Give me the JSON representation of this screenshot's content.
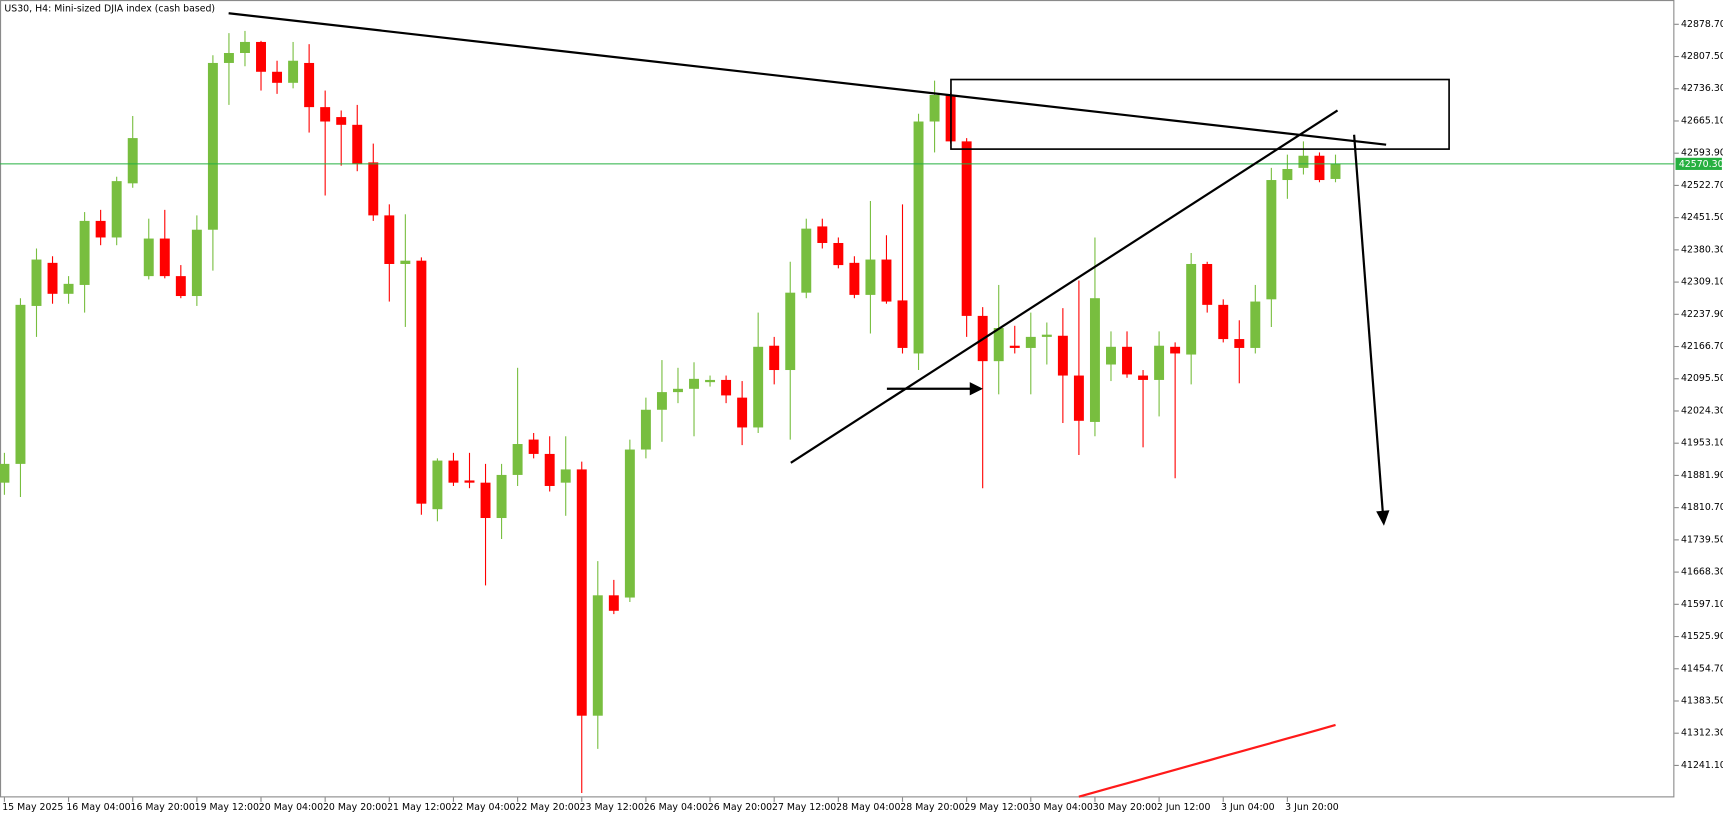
{
  "chart_data": {
    "type": "candlestick",
    "title": "US30, H4:  Mini-sized DJIA index (cash based)",
    "categories": [
      "15 May 2025",
      null,
      null,
      null,
      "16 May 04:00",
      null,
      null,
      null,
      "16 May 20:00",
      null,
      null,
      null,
      "19 May 12:00",
      null,
      null,
      null,
      "20 May 04:00",
      null,
      null,
      null,
      "20 May 20:00",
      null,
      null,
      null,
      "21 May 12:00",
      null,
      null,
      null,
      "22 May 04:00",
      null,
      null,
      null,
      "22 May 20:00",
      null,
      null,
      null,
      "23 May 12:00",
      null,
      null,
      null,
      "26 May 04:00",
      null,
      null,
      null,
      "26 May 20:00",
      null,
      null,
      null,
      "27 May 12:00",
      null,
      null,
      null,
      "28 May 04:00",
      null,
      null,
      null,
      "28 May 20:00",
      null,
      null,
      null,
      "29 May 12:00",
      null,
      null,
      null,
      "30 May 04:00",
      null,
      null,
      null,
      "30 May 20:00",
      null,
      null,
      null,
      "2 Jun 12:00",
      null,
      null,
      null,
      "3 Jun 04:00",
      null,
      null,
      null,
      "3 Jun 20:00",
      null,
      null,
      null
    ],
    "open": [
      41865.9,
      41907.4,
      42256.4,
      42351.6,
      42283.2,
      42302.8,
      42444.3,
      42407.7,
      42527.3,
      42322.3,
      42405.3,
      42322.3,
      42278.3,
      42424.8,
      42793.3,
      42815.3,
      42839.7,
      42773.8,
      42749.4,
      42793.3,
      42695.7,
      42673.7,
      42656.6,
      42573.6,
      42456.5,
      42349.1,
      42356.4,
      41807.3,
      41914.7,
      41870.8,
      41865.9,
      41787.8,
      41883.0,
      41961.1,
      41929.4,
      41865.9,
      41895.2,
      41351.0,
      41617.0,
      41612.1,
      41939.1,
      42027.0,
      42066.0,
      42073.3,
      42088.0,
      42092.9,
      42053.8,
      41987.9,
      42168.5,
      42114.8,
      42285.7,
      42432.1,
      42395.5,
      42351.6,
      42280.8,
      42358.9,
      42268.6,
      42151.4,
      42663.9,
      42722.5,
      42620.0,
      42234.4,
      42134.4,
      42168.5,
      42163.6,
      42188.0,
      42190.5,
      42102.6,
      42000.1,
      42127.0,
      42166.1,
      42102.6,
      42092.9,
      42166.1,
      42149.0,
      42349.1,
      42258.8,
      42183.2,
      42163.6,
      42271.0,
      42534.6,
      42561.4,
      42588.3,
      42537.0
    ],
    "high": [
      41931.8,
      42273.5,
      42383.3,
      42366.2,
      42322.3,
      42463.8,
      42468.7,
      42541.9,
      42676.1,
      42449.2,
      42468.7,
      42346.7,
      42456.5,
      42810.4,
      42859.2,
      42864.1,
      42842.1,
      42798.2,
      42839.7,
      42834.8,
      42732.3,
      42688.3,
      42700.6,
      42615.1,
      42480.9,
      42458.9,
      42363.8,
      41919.6,
      41931.8,
      41931.8,
      41907.4,
      41907.4,
      42119.7,
      41975.7,
      41968.4,
      41968.4,
      41912.3,
      41692.6,
      41651.1,
      41961.1,
      42053.8,
      42136.8,
      42119.7,
      42131.9,
      42102.6,
      42102.6,
      42090.4,
      42241.7,
      42188.0,
      42354.0,
      42449.2,
      42449.2,
      42407.7,
      42366.2,
      42488.2,
      42412.6,
      42480.9,
      42681.0,
      42754.2,
      42727.4,
      42627.3,
      42253.9,
      42302.8,
      42212.5,
      42241.7,
      42219.8,
      42251.5,
      42312.5,
      42407.7,
      42200.2,
      42200.2,
      42114.8,
      42200.2,
      42175.8,
      42373.5,
      42354.0,
      42271.0,
      42224.7,
      42302.8,
      42561.4,
      42590.7,
      42620.0,
      42595.6,
      42590.7
    ],
    "low": [
      41839.1,
      41834.2,
      42188.0,
      42261.3,
      42261.3,
      42241.7,
      42390.6,
      42390.6,
      42517.5,
      42315.0,
      42317.4,
      42273.5,
      42256.4,
      42334.5,
      42700.6,
      42786.0,
      42732.3,
      42725.0,
      42737.2,
      42639.5,
      42500.4,
      42566.3,
      42554.1,
      42444.3,
      42266.1,
      42210.0,
      41795.1,
      41780.5,
      41858.6,
      41853.7,
      41638.9,
      41741.4,
      41858.6,
      41919.6,
      41846.4,
      41792.7,
      41180.1,
      41277.7,
      41575.5,
      41602.3,
      41919.6,
      41956.2,
      42041.6,
      41968.4,
      42078.2,
      42041.6,
      41948.9,
      41975.7,
      42083.1,
      41961.1,
      42273.5,
      42383.3,
      42339.4,
      42273.5,
      42195.4,
      42261.3,
      42151.4,
      42114.8,
      42595.6,
      42615.1,
      42188.0,
      41853.7,
      42061.1,
      42151.4,
      42061.1,
      42127.0,
      41997.7,
      41926.9,
      41968.4,
      42090.4,
      42097.7,
      41944.0,
      42012.3,
      41875.7,
      42083.1,
      42241.7,
      42175.8,
      42085.5,
      42151.4,
      42210.0,
      42493.1,
      42546.8,
      42529.7,
      42529.7
    ],
    "close": [
      41907.4,
      42258.8,
      42358.9,
      42283.2,
      42305.2,
      42444.3,
      42407.7,
      42532.2,
      42627.3,
      42405.3,
      42322.3,
      42278.3,
      42424.8,
      42793.3,
      42815.3,
      42839.7,
      42773.8,
      42749.4,
      42798.2,
      42695.7,
      42663.9,
      42656.6,
      42571.2,
      42456.5,
      42349.1,
      42356.4,
      41819.5,
      41914.7,
      41865.9,
      41865.9,
      41787.8,
      41883.0,
      41951.3,
      41929.4,
      41858.6,
      41895.2,
      41351.0,
      41617.0,
      41582.8,
      41939.1,
      42027.0,
      42066.0,
      42073.3,
      42095.3,
      42092.9,
      42058.7,
      41987.9,
      42166.1,
      42114.8,
      42285.7,
      42427.2,
      42395.5,
      42346.7,
      42280.8,
      42358.9,
      42266.1,
      42163.6,
      42663.9,
      42722.5,
      42620.0,
      42234.4,
      42134.4,
      42207.6,
      42163.6,
      42188.0,
      42192.9,
      42102.6,
      42002.6,
      42273.5,
      42166.1,
      42105.1,
      42092.9,
      42168.5,
      42151.4,
      42349.1,
      42258.8,
      42183.2,
      42163.6,
      42266.1,
      42534.6,
      42559.0,
      42588.3,
      42534.6,
      42570.3
    ],
    "up_color": "#78be3f",
    "down_color": "#ff0000",
    "ylim": [
      41170.4,
      42932.4
    ],
    "yticks": [
      {
        "value": 42878.7,
        "label": "42878.70"
      },
      {
        "value": 42807.5,
        "label": "42807.50"
      },
      {
        "value": 42736.3,
        "label": "42736.30"
      },
      {
        "value": 42665.1,
        "label": "42665.10"
      },
      {
        "value": 42593.9,
        "label": "42593.90"
      },
      {
        "value": 42522.7,
        "label": "42522.70"
      },
      {
        "value": 42451.5,
        "label": "42451.50"
      },
      {
        "value": 42380.3,
        "label": "42380.30"
      },
      {
        "value": 42309.1,
        "label": "42309.10"
      },
      {
        "value": 42237.9,
        "label": "42237.90"
      },
      {
        "value": 42166.7,
        "label": "42166.70"
      },
      {
        "value": 42095.5,
        "label": "42095.50"
      },
      {
        "value": 42024.3,
        "label": "42024.30"
      },
      {
        "value": 41953.1,
        "label": "41953.10"
      },
      {
        "value": 41881.9,
        "label": "41881.90"
      },
      {
        "value": 41810.7,
        "label": "41810.70"
      },
      {
        "value": 41739.5,
        "label": "41739.50"
      },
      {
        "value": 41668.3,
        "label": "41668.30"
      },
      {
        "value": 41597.1,
        "label": "41597.10"
      },
      {
        "value": 41525.9,
        "label": "41525.90"
      },
      {
        "value": 41454.7,
        "label": "41454.70"
      },
      {
        "value": 41383.5,
        "label": "41383.50"
      },
      {
        "value": 41312.3,
        "label": "41312.30"
      },
      {
        "value": 41241.1,
        "label": "41241.10"
      }
    ],
    "price_line": {
      "value": 42570.3,
      "label": "42570.30",
      "color": "#26b040"
    },
    "ma_line": {
      "color": "#ff1a1a",
      "values": [
        null,
        null,
        null,
        null,
        null,
        null,
        null,
        null,
        null,
        null,
        null,
        null,
        null,
        null,
        null,
        null,
        null,
        null,
        null,
        null,
        null,
        null,
        null,
        null,
        null,
        null,
        null,
        null,
        null,
        null,
        null,
        null,
        null,
        null,
        null,
        null,
        null,
        null,
        null,
        null,
        null,
        null,
        null,
        null,
        null,
        null,
        null,
        null,
        null,
        null,
        null,
        null,
        null,
        null,
        null,
        null,
        null,
        null,
        null,
        null,
        null,
        null,
        null,
        null,
        null,
        null,
        null,
        41172.0,
        41181.9,
        41191.8,
        41201.7,
        41211.6,
        41221.5,
        41231.4,
        41241.3,
        41251.2,
        41261.1,
        41271.0,
        41280.9,
        41290.8,
        41300.7,
        41310.6,
        41320.5,
        41330.4
      ]
    }
  }
}
